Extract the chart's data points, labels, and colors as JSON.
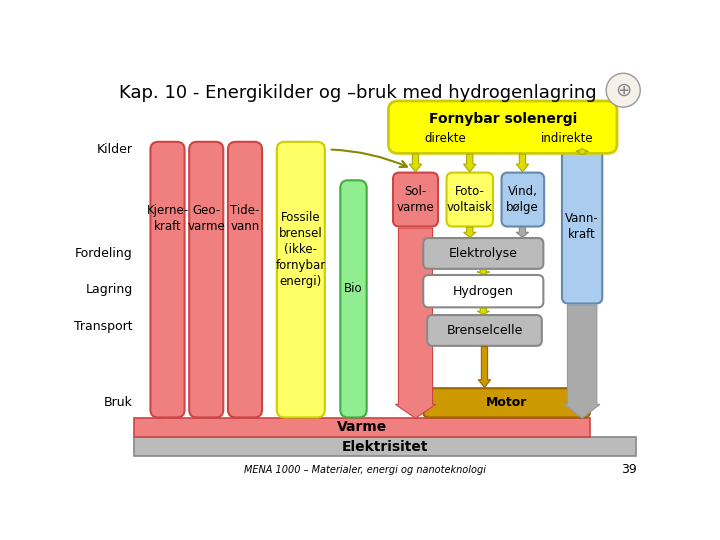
{
  "title": "Kap. 10 - Energikilder og –bruk med hydrogenlagring",
  "subtitle": "MENA 1000 – Materialer, energi og nanoteknologi",
  "page_num": "39",
  "bg": "#FFFFFF",
  "col_salmon": "#F08080",
  "col_salmon_edge": "#CC4444",
  "col_yellow": "#FFFF66",
  "col_yellow_edge": "#CCCC00",
  "col_green": "#90EE90",
  "col_green_edge": "#44AA44",
  "col_lightblue": "#AACCEE",
  "col_lightblue_edge": "#6688AA",
  "col_gray": "#BBBBBB",
  "col_gray_edge": "#888888",
  "col_white": "#FFFFFF",
  "col_gold": "#CC9900",
  "col_gold_edge": "#996600",
  "col_arrow_gray": "#AAAAAA",
  "col_arrow_salmon": "#F08080",
  "col_arrow_yellow": "#DDDD00"
}
